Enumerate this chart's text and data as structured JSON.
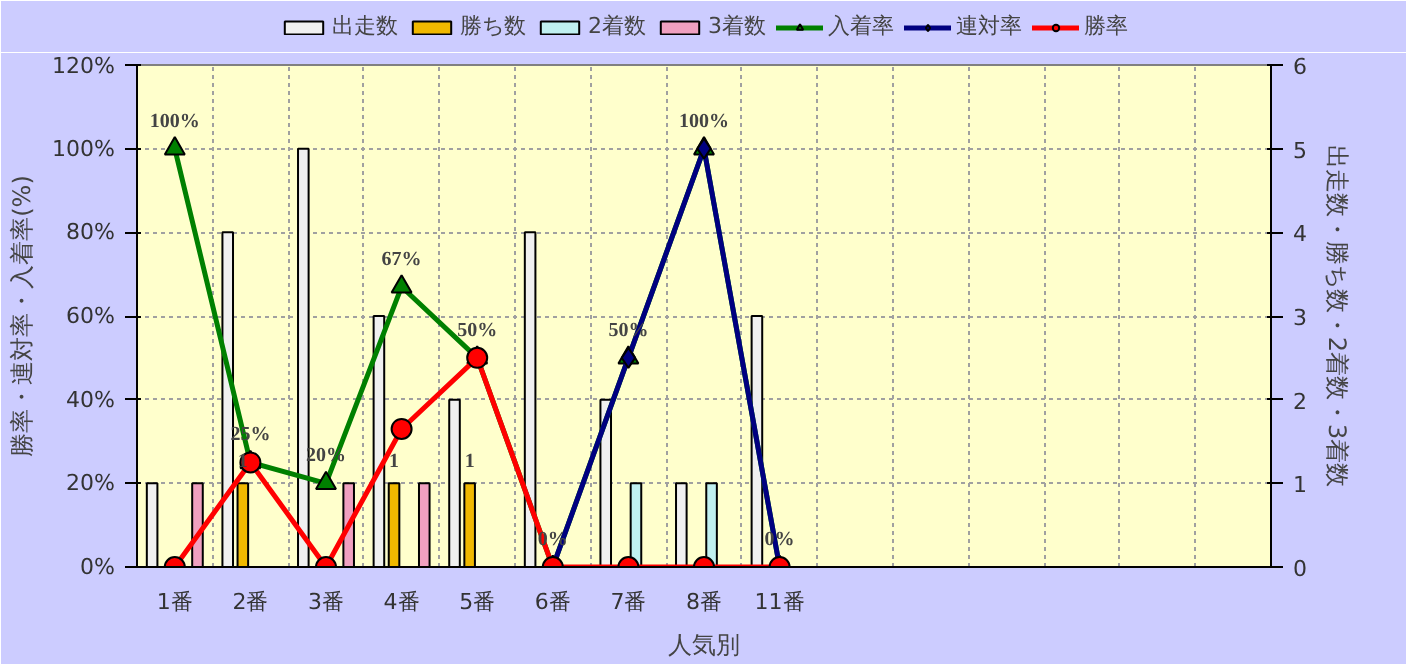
{
  "chart_data": {
    "type": "bar",
    "categories": [
      "1番",
      "2番",
      "3番",
      "4番",
      "5番",
      "6番",
      "7番",
      "8番",
      "11番",
      null,
      null,
      null,
      null,
      null,
      null
    ],
    "xlabel": "人気別",
    "ylabel": "勝率・連対率・入着率(%)",
    "y2label": "出走数・勝ち数・2着数・3着数",
    "ylim": [
      0,
      120
    ],
    "yticks": [
      {
        "value": 0,
        "label": "0%"
      },
      {
        "value": 20,
        "label": "20%"
      },
      {
        "value": 40,
        "label": "40%"
      },
      {
        "value": 60,
        "label": "60%"
      },
      {
        "value": 80,
        "label": "80%"
      },
      {
        "value": 100,
        "label": "100%"
      },
      {
        "value": 120,
        "label": "120%"
      }
    ],
    "y2lim": [
      0,
      6
    ],
    "y2ticks": [
      0,
      1,
      2,
      3,
      4,
      5,
      6
    ],
    "grid": true,
    "legend": "top",
    "series": [
      {
        "name": "出走数",
        "axis": "y2",
        "color": "#f0f0f0",
        "values": [
          1,
          4,
          5,
          3,
          2,
          4,
          2,
          1,
          3,
          null,
          null,
          null,
          null,
          null,
          null
        ]
      },
      {
        "name": "勝ち数",
        "axis": "y2",
        "color": "#f0b800",
        "values": [
          0,
          1,
          0,
          1,
          1,
          0,
          0,
          0,
          0,
          null,
          null,
          null,
          null,
          null,
          null
        ],
        "value_labels": [
          null,
          "1",
          null,
          "1",
          "1",
          null,
          null,
          null,
          null,
          null,
          null,
          null,
          null,
          null,
          null
        ]
      },
      {
        "name": "2着数",
        "axis": "y2",
        "color": "#c0f0f0",
        "values": [
          0,
          0,
          0,
          0,
          0,
          0,
          1,
          1,
          0,
          null,
          null,
          null,
          null,
          null,
          null
        ]
      },
      {
        "name": "3着数",
        "axis": "y2",
        "color": "#f0a0c0",
        "values": [
          1,
          0,
          1,
          1,
          0,
          0,
          0,
          0,
          0,
          null,
          null,
          null,
          null,
          null,
          null
        ]
      },
      {
        "name": "入着率",
        "type": "line",
        "marker": "triangle",
        "color": "#008000",
        "values": [
          100,
          25,
          20,
          67,
          50,
          0,
          50,
          100,
          0,
          null,
          null,
          null,
          null,
          null,
          null
        ],
        "value_labels": [
          "100%",
          "25%",
          "20%",
          "67%",
          "50%",
          "0%",
          "50%",
          "100%",
          "0%",
          null,
          null,
          null,
          null,
          null,
          null
        ]
      },
      {
        "name": "連対率",
        "type": "line",
        "marker": "diamond",
        "color": "#000080",
        "values": [
          null,
          null,
          null,
          null,
          null,
          0,
          50,
          100,
          0,
          null,
          null,
          null,
          null,
          null,
          null
        ]
      },
      {
        "name": "勝率",
        "type": "line",
        "marker": "circle",
        "color": "#ff0000",
        "values": [
          0,
          25,
          0,
          33,
          50,
          0,
          0,
          0,
          0,
          null,
          null,
          null,
          null,
          null,
          null
        ]
      }
    ]
  }
}
